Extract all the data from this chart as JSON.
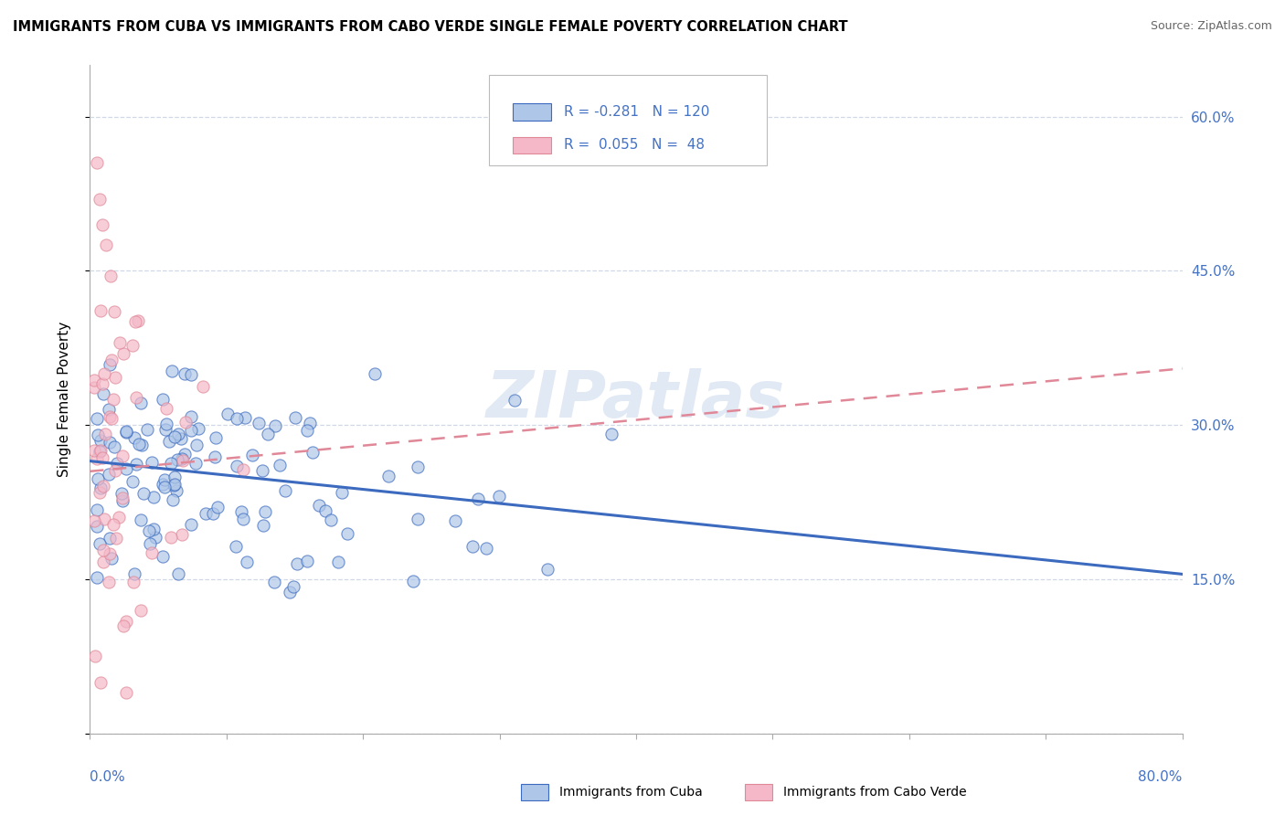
{
  "title": "IMMIGRANTS FROM CUBA VS IMMIGRANTS FROM CABO VERDE SINGLE FEMALE POVERTY CORRELATION CHART",
  "source": "Source: ZipAtlas.com",
  "ylabel": "Single Female Poverty",
  "right_yticks": [
    "60.0%",
    "45.0%",
    "30.0%",
    "15.0%"
  ],
  "right_ytick_vals": [
    0.6,
    0.45,
    0.3,
    0.15
  ],
  "watermark": "ZIPatlas",
  "color_cuba": "#aec6e8",
  "color_cabo": "#f4b8c8",
  "color_cuba_line": "#3b6abf",
  "color_cabo_line": "#e08898",
  "color_blue_text": "#4472c4",
  "xlim": [
    0.0,
    0.8
  ],
  "ylim": [
    0.0,
    0.65
  ],
  "cuba_trend_x0": 0.0,
  "cuba_trend_y0": 0.265,
  "cuba_trend_x1": 0.8,
  "cuba_trend_y1": 0.155,
  "cabo_trend_x0": 0.0,
  "cabo_trend_y0": 0.255,
  "cabo_trend_x1": 0.8,
  "cabo_trend_y1": 0.355
}
